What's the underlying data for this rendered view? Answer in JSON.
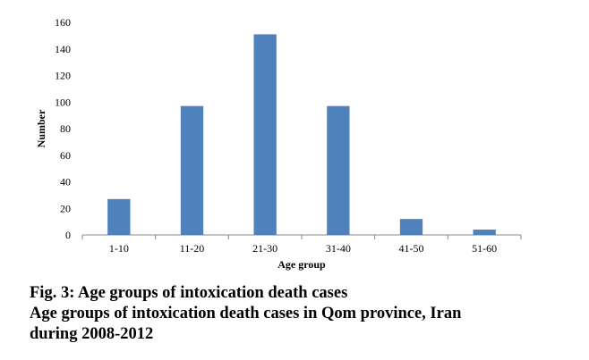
{
  "chart_data": {
    "type": "bar",
    "categories": [
      "1-10",
      "11-20",
      "21-30",
      "31-40",
      "41-50",
      "51-60"
    ],
    "values": [
      27,
      97,
      151,
      97,
      12,
      4
    ],
    "xlabel": "Age group",
    "ylabel": "Number",
    "ylim": [
      0,
      160
    ],
    "yticks": [
      0,
      20,
      40,
      60,
      80,
      100,
      120,
      140,
      160
    ],
    "bar_color": "#4f81bd",
    "grid": false,
    "legend": "none"
  },
  "caption": {
    "line1": "Fig. 3: Age groups of intoxication death cases",
    "line2": "Age groups of intoxication death cases in Qom province, Iran",
    "line3": "during 2008-2012"
  }
}
